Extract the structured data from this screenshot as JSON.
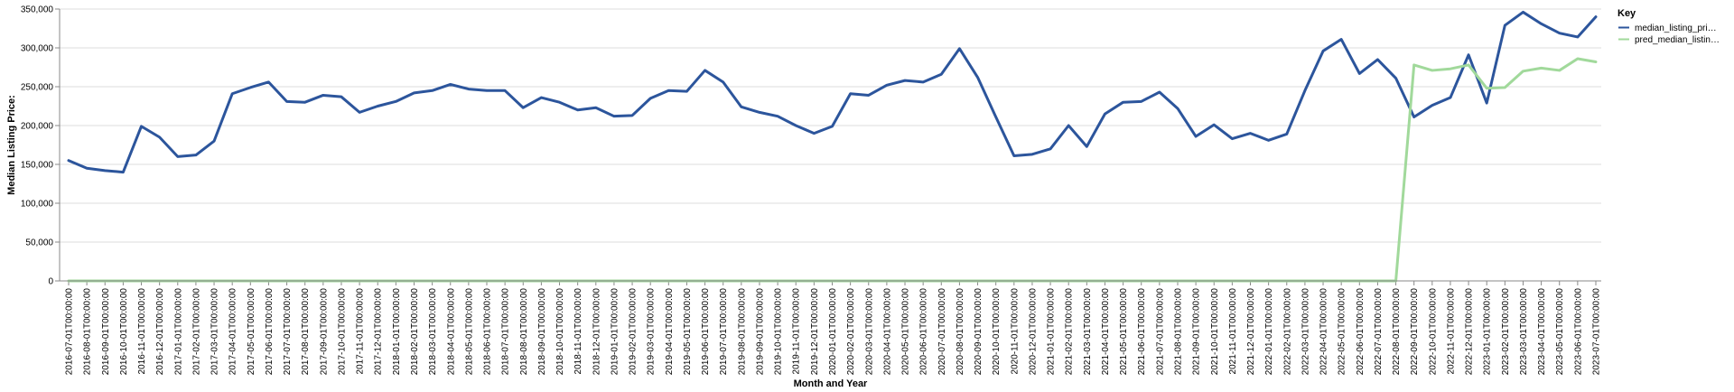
{
  "chart_data": {
    "type": "line",
    "xlabel": "Month and Year",
    "ylabel": "Median Listing Price:",
    "ylim": [
      0,
      350000
    ],
    "yticks": [
      "0",
      "50,000",
      "100,000",
      "150,000",
      "200,000",
      "250,000",
      "300,000",
      "350,000"
    ],
    "grid": true,
    "legend": {
      "title": "Key",
      "placement": "top-right",
      "entries": [
        "median_listing_pri…",
        "pred_median_listin…"
      ]
    },
    "x": [
      "2016-07-01T00:00:00",
      "2016-08-01T00:00:00",
      "2016-09-01T00:00:00",
      "2016-10-01T00:00:00",
      "2016-11-01T00:00:00",
      "2016-12-01T00:00:00",
      "2017-01-01T00:00:00",
      "2017-02-01T00:00:00",
      "2017-03-01T00:00:00",
      "2017-04-01T00:00:00",
      "2017-05-01T00:00:00",
      "2017-06-01T00:00:00",
      "2017-07-01T00:00:00",
      "2017-08-01T00:00:00",
      "2017-09-01T00:00:00",
      "2017-10-01T00:00:00",
      "2017-11-01T00:00:00",
      "2017-12-01T00:00:00",
      "2018-01-01T00:00:00",
      "2018-02-01T00:00:00",
      "2018-03-01T00:00:00",
      "2018-04-01T00:00:00",
      "2018-05-01T00:00:00",
      "2018-06-01T00:00:00",
      "2018-07-01T00:00:00",
      "2018-08-01T00:00:00",
      "2018-09-01T00:00:00",
      "2018-10-01T00:00:00",
      "2018-11-01T00:00:00",
      "2018-12-01T00:00:00",
      "2019-01-01T00:00:00",
      "2019-02-01T00:00:00",
      "2019-03-01T00:00:00",
      "2019-04-01T00:00:00",
      "2019-05-01T00:00:00",
      "2019-06-01T00:00:00",
      "2019-07-01T00:00:00",
      "2019-08-01T00:00:00",
      "2019-09-01T00:00:00",
      "2019-10-01T00:00:00",
      "2019-11-01T00:00:00",
      "2019-12-01T00:00:00",
      "2020-01-01T00:00:00",
      "2020-02-01T00:00:00",
      "2020-03-01T00:00:00",
      "2020-04-01T00:00:00",
      "2020-05-01T00:00:00",
      "2020-06-01T00:00:00",
      "2020-07-01T00:00:00",
      "2020-08-01T00:00:00",
      "2020-09-01T00:00:00",
      "2020-10-01T00:00:00",
      "2020-11-01T00:00:00",
      "2020-12-01T00:00:00",
      "2021-01-01T00:00:00",
      "2021-02-01T00:00:00",
      "2021-03-01T00:00:00",
      "2021-04-01T00:00:00",
      "2021-05-01T00:00:00",
      "2021-06-01T00:00:00",
      "2021-07-01T00:00:00",
      "2021-08-01T00:00:00",
      "2021-09-01T00:00:00",
      "2021-10-01T00:00:00",
      "2021-11-01T00:00:00",
      "2021-12-01T00:00:00",
      "2022-01-01T00:00:00",
      "2022-02-01T00:00:00",
      "2022-03-01T00:00:00",
      "2022-04-01T00:00:00",
      "2022-05-01T00:00:00",
      "2022-06-01T00:00:00",
      "2022-07-01T00:00:00",
      "2022-08-01T00:00:00",
      "2022-09-01T00:00:00",
      "2022-10-01T00:00:00",
      "2022-11-01T00:00:00",
      "2022-12-01T00:00:00",
      "2023-01-01T00:00:00",
      "2023-02-01T00:00:00",
      "2023-03-01T00:00:00",
      "2023-04-01T00:00:00",
      "2023-05-01T00:00:00",
      "2023-06-01T00:00:00",
      "2023-07-01T00:00:00"
    ],
    "series": [
      {
        "name": "median_listing_pri…",
        "color": "#2c559c",
        "values": [
          155000,
          145000,
          142000,
          140000,
          199000,
          185000,
          160000,
          162000,
          180000,
          241000,
          249000,
          256000,
          231000,
          230000,
          239000,
          237000,
          217000,
          225000,
          231000,
          242000,
          245000,
          253000,
          247000,
          245000,
          245000,
          223000,
          236000,
          230000,
          220000,
          223000,
          212000,
          213000,
          235000,
          245000,
          244000,
          271000,
          256000,
          224000,
          217000,
          212000,
          200000,
          190000,
          199000,
          241000,
          239000,
          252000,
          258000,
          256000,
          266000,
          299000,
          262000,
          211000,
          161000,
          163000,
          170000,
          200000,
          173000,
          215000,
          230000,
          231000,
          243000,
          222000,
          186000,
          201000,
          183000,
          190000,
          181000,
          189000,
          245000,
          296000,
          311000,
          267000,
          285000,
          261000,
          211000,
          226000,
          236000,
          291000,
          229000,
          329000,
          346000,
          331000,
          319000,
          314000,
          340000
        ]
      },
      {
        "name": "pred_median_listin…",
        "color": "#a1d99b",
        "values": [
          0,
          0,
          0,
          0,
          0,
          0,
          0,
          0,
          0,
          0,
          0,
          0,
          0,
          0,
          0,
          0,
          0,
          0,
          0,
          0,
          0,
          0,
          0,
          0,
          0,
          0,
          0,
          0,
          0,
          0,
          0,
          0,
          0,
          0,
          0,
          0,
          0,
          0,
          0,
          0,
          0,
          0,
          0,
          0,
          0,
          0,
          0,
          0,
          0,
          0,
          0,
          0,
          0,
          0,
          0,
          0,
          0,
          0,
          0,
          0,
          0,
          0,
          0,
          0,
          0,
          0,
          0,
          0,
          0,
          0,
          0,
          0,
          0,
          0,
          278000,
          271000,
          273000,
          278000,
          248000,
          249000,
          270000,
          274000,
          271000,
          286000,
          282000
        ]
      }
    ]
  }
}
